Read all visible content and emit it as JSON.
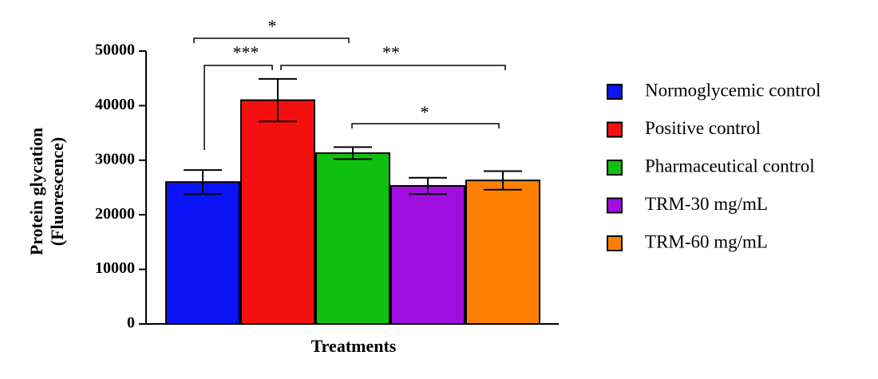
{
  "chart_data": {
    "type": "bar",
    "xlabel": "Treatments",
    "ylabel": [
      "Protein glycation",
      "(Fluorescence)"
    ],
    "categories": [
      null
    ],
    "ylim": [
      0,
      50000
    ],
    "yticks": [
      0,
      10000,
      20000,
      30000,
      40000,
      50000
    ],
    "grid": false,
    "legend": "right",
    "series": [
      {
        "name": "Normoglycemic control",
        "color": "#0a14f5",
        "values": [
          26000
        ],
        "errors": [
          2200
        ]
      },
      {
        "name": "Positive control",
        "color": "#f51010",
        "values": [
          41000
        ],
        "errors": [
          3900
        ]
      },
      {
        "name": "Pharmaceutical control",
        "color": "#10c010",
        "values": [
          31300
        ],
        "errors": [
          1100
        ]
      },
      {
        "name": "TRM-30 mg/mL",
        "color": "#a10ee0",
        "values": [
          25300
        ],
        "errors": [
          1500
        ]
      },
      {
        "name": "TRM-60 mg/mL",
        "color": "#ff8000",
        "values": [
          26300
        ],
        "errors": [
          1700
        ]
      }
    ],
    "annotations": [
      "*",
      "***",
      "**",
      "*"
    ]
  }
}
